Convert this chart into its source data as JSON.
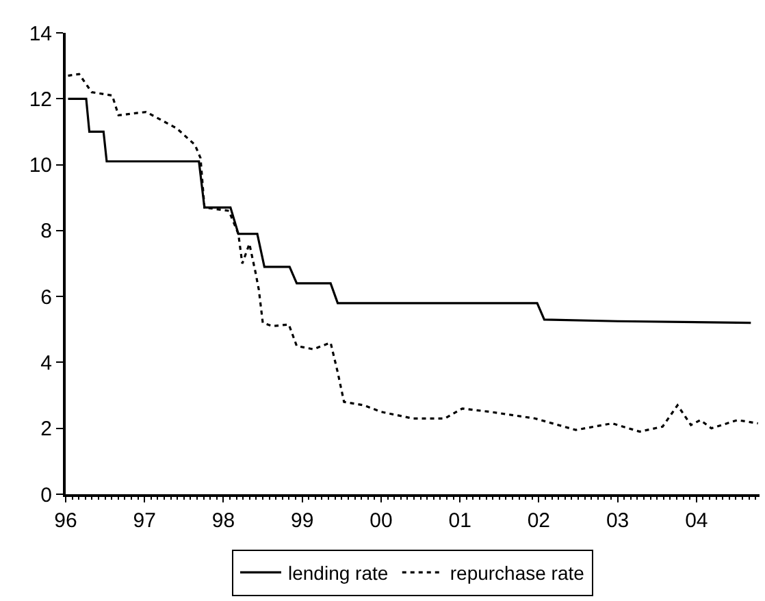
{
  "chart_data": {
    "type": "line",
    "xlim": [
      1996,
      2004.8
    ],
    "xticks": [
      {
        "value": 1996,
        "label": "96"
      },
      {
        "value": 1997,
        "label": "97"
      },
      {
        "value": 1998,
        "label": "98"
      },
      {
        "value": 1999,
        "label": "99"
      },
      {
        "value": 2000,
        "label": "00"
      },
      {
        "value": 2001,
        "label": "01"
      },
      {
        "value": 2002,
        "label": "02"
      },
      {
        "value": 2003,
        "label": "03"
      },
      {
        "value": 2004,
        "label": "04"
      }
    ],
    "ylim": [
      0,
      14
    ],
    "yticks": [
      0,
      2,
      4,
      6,
      8,
      10,
      12,
      14
    ],
    "legend": "bottom",
    "marker": "none",
    "series": [
      {
        "name": "lending rate",
        "color": "#000000",
        "line_style": "solid",
        "x": [
          1996.03,
          1996.26,
          1996.3,
          1996.48,
          1996.52,
          1997.69,
          1997.76,
          1998.09,
          1998.19,
          1998.43,
          1998.52,
          1998.84,
          1998.93,
          1999.36,
          1999.45,
          2001.98,
          2002.07,
          2003.0,
          2004.69
        ],
        "values": [
          12.0,
          12.0,
          11.0,
          11.0,
          10.1,
          10.1,
          8.7,
          8.7,
          7.9,
          7.9,
          6.9,
          6.9,
          6.4,
          6.4,
          5.8,
          5.8,
          5.3,
          5.25,
          5.2
        ]
      },
      {
        "name": "repurchase rate",
        "color": "#000000",
        "line_style": "dotted",
        "x": [
          1996.03,
          1996.17,
          1996.33,
          1996.59,
          1996.67,
          1997.02,
          1997.41,
          1997.64,
          1997.71,
          1997.76,
          1998.07,
          1998.19,
          1998.24,
          1998.33,
          1998.41,
          1998.45,
          1998.5,
          1998.62,
          1998.83,
          1998.93,
          1999.14,
          1999.36,
          1999.45,
          1999.53,
          1999.78,
          2000.0,
          2000.4,
          2000.81,
          2001.03,
          2001.38,
          2001.95,
          2002.47,
          2002.93,
          2003.28,
          2003.57,
          2003.76,
          2003.93,
          2004.05,
          2004.19,
          2004.52,
          2004.78
        ],
        "values": [
          12.7,
          12.75,
          12.2,
          12.1,
          11.5,
          11.6,
          11.1,
          10.6,
          10.2,
          8.7,
          8.6,
          7.9,
          7.0,
          7.6,
          6.7,
          6.2,
          5.2,
          5.1,
          5.15,
          4.5,
          4.4,
          4.6,
          3.7,
          2.8,
          2.7,
          2.5,
          2.3,
          2.3,
          2.6,
          2.5,
          2.3,
          1.95,
          2.15,
          1.9,
          2.05,
          2.7,
          2.1,
          2.25,
          2.0,
          2.25,
          2.15
        ]
      }
    ]
  }
}
